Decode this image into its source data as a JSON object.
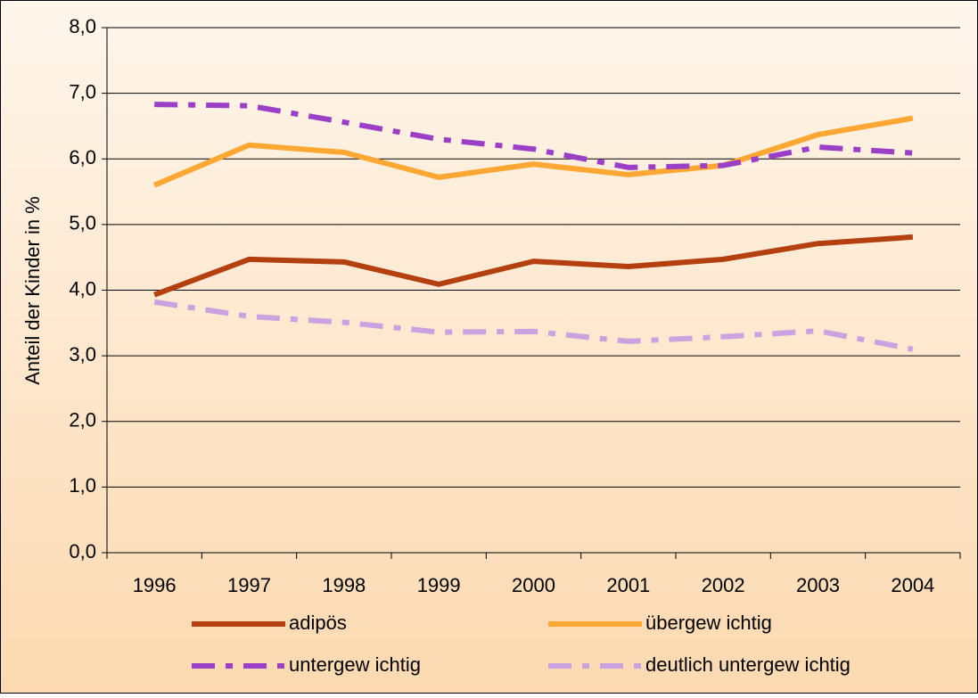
{
  "chart_data": {
    "type": "line",
    "y_label": "Anteil der Kinder in %",
    "categories": [
      "1996",
      "1997",
      "1998",
      "1999",
      "2000",
      "2001",
      "2002",
      "2003",
      "2004"
    ],
    "series": [
      {
        "name": "adipös",
        "color": "#b5400f",
        "dash": false,
        "values": [
          3.93,
          4.47,
          4.43,
          4.09,
          4.44,
          4.36,
          4.47,
          4.71,
          4.81
        ]
      },
      {
        "name": "übergew ichtig",
        "color": "#ffa733",
        "dash": false,
        "values": [
          5.6,
          6.21,
          6.1,
          5.72,
          5.92,
          5.76,
          5.9,
          6.37,
          6.62
        ]
      },
      {
        "name": "untergew ichtig",
        "color": "#9b3fc6",
        "dash": true,
        "values": [
          6.83,
          6.81,
          6.56,
          6.3,
          6.15,
          5.87,
          5.9,
          6.18,
          6.09
        ]
      },
      {
        "name": "deutlich untergew ichtig",
        "color": "#c9a2df",
        "dash": true,
        "values": [
          3.82,
          3.6,
          3.51,
          3.36,
          3.37,
          3.22,
          3.29,
          3.38,
          3.1
        ]
      }
    ],
    "ylim": [
      0,
      8
    ],
    "yticks": [
      {
        "value": 0,
        "label": "0,0"
      },
      {
        "value": 1,
        "label": "1,0"
      },
      {
        "value": 2,
        "label": "2,0"
      },
      {
        "value": 3,
        "label": "3,0"
      },
      {
        "value": 4,
        "label": "4,0"
      },
      {
        "value": 5,
        "label": "5,0"
      },
      {
        "value": 6,
        "label": "6,0"
      },
      {
        "value": 7,
        "label": "7,0"
      },
      {
        "value": 8,
        "label": "8,0"
      }
    ],
    "grid": true
  }
}
